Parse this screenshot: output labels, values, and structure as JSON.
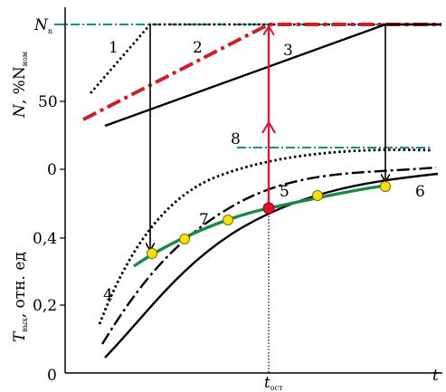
{
  "axes": {
    "n_label": "N",
    "n_label_rest": ", %N",
    "n_label_sub": "ном",
    "t_label": "T",
    "t_label_sub": "вых",
    "t_label_rest": ", отн. ед",
    "x_label": "t",
    "t_ost": "t",
    "t_ost_sub": "ост"
  },
  "ticks": {
    "n_top": "N",
    "n_top_sub": "n",
    "n_50": "50",
    "n_0": "0",
    "t_04": "0,4",
    "t_02": "0,2",
    "origin": "0"
  },
  "curve_labels": [
    "1",
    "2",
    "3",
    "4",
    "5",
    "6",
    "7",
    "8"
  ],
  "colors": {
    "axis": "#000000",
    "reference_line": "#1f8c8c",
    "curve2": "#cc1f2a",
    "red_arrow": "#d81b3c",
    "curve7": "#1a8a4a",
    "marker_fill": "#ffe000",
    "marker_stroke": "#7a6a00",
    "red_marker": "#e0102a"
  }
}
